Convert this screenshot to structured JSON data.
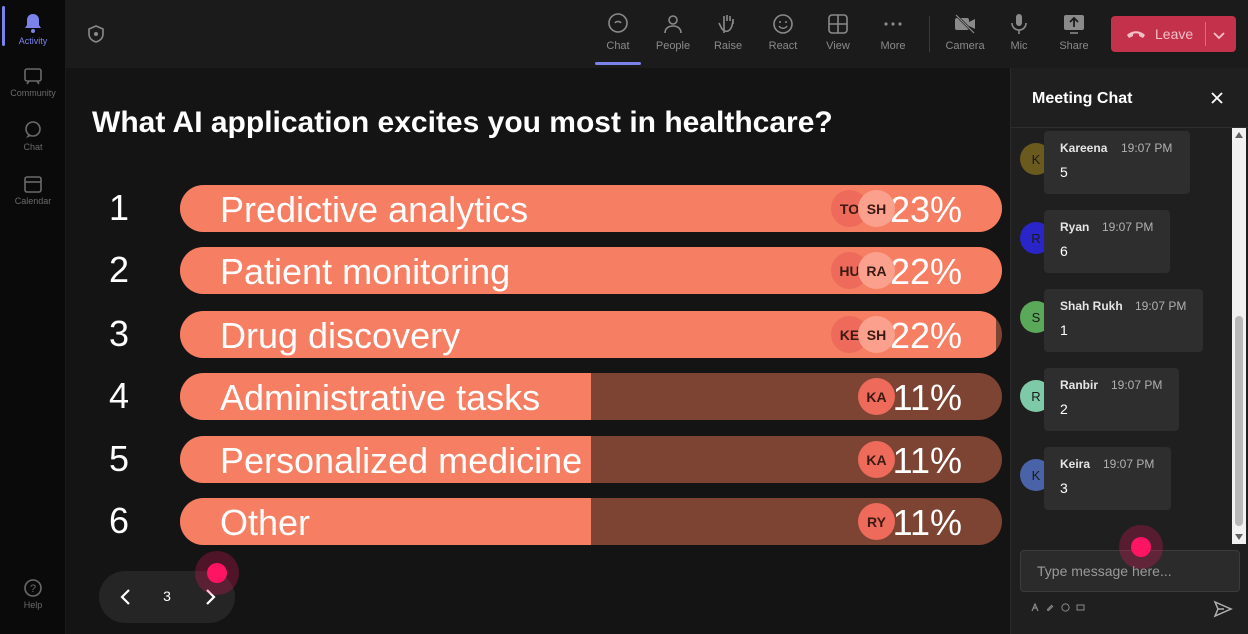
{
  "rail": {
    "items": [
      {
        "label": "Activity"
      },
      {
        "label": "Community"
      },
      {
        "label": "Chat"
      },
      {
        "label": "Calendar"
      }
    ],
    "help": "Help"
  },
  "toolbar": {
    "chat": "Chat",
    "people": "People",
    "raise": "Raise",
    "react": "React",
    "view": "View",
    "more": "More",
    "camera": "Camera",
    "mic": "Mic",
    "share": "Share",
    "leave": "Leave"
  },
  "poll": {
    "question": "What AI application excites you most in healthcare?",
    "options": [
      {
        "rank": "1",
        "label": "Predictive analytics",
        "percent": "23%",
        "fill": 1.0,
        "voters": [
          "TO",
          "SH"
        ]
      },
      {
        "rank": "2",
        "label": "Patient monitoring",
        "percent": "22%",
        "fill": 1.0,
        "voters": [
          "HU",
          "RA"
        ]
      },
      {
        "rank": "3",
        "label": "Drug discovery",
        "percent": "22%",
        "fill": 0.993,
        "voters": [
          "KE",
          "SH"
        ]
      },
      {
        "rank": "4",
        "label": "Administrative tasks",
        "percent": "11%",
        "fill": 0.5,
        "voters": [
          "KA"
        ]
      },
      {
        "rank": "5",
        "label": "Personalized medicine",
        "percent": "11%",
        "fill": 0.5,
        "voters": [
          "KA"
        ]
      },
      {
        "rank": "6",
        "label": "Other",
        "percent": "11%",
        "fill": 0.5,
        "voters": [
          "RY"
        ]
      }
    ],
    "page": "3"
  },
  "chat": {
    "title": "Meeting Chat",
    "messages": [
      {
        "initial": "K",
        "name": "Kareena",
        "time": "19:07 PM",
        "text": "5",
        "color": "#6b5a1e"
      },
      {
        "initial": "R",
        "name": "Ryan",
        "time": "19:07 PM",
        "text": "6",
        "color": "#2a25c9"
      },
      {
        "initial": "S",
        "name": "Shah Rukh",
        "time": "19:07 PM",
        "text": "1",
        "color": "#5aa85a"
      },
      {
        "initial": "R",
        "name": "Ranbir",
        "time": "19:07 PM",
        "text": "2",
        "color": "#7ec9a8"
      },
      {
        "initial": "K",
        "name": "Keira",
        "time": "19:07 PM",
        "text": "3",
        "color": "#4a63a8"
      }
    ],
    "input_placeholder": "Type message here..."
  },
  "colors": {
    "accent": "#7b83eb",
    "leave": "#c4314b",
    "bar_fill": "#f67e62",
    "bar_track": "#7d4433",
    "cursor": "#ff1464"
  }
}
